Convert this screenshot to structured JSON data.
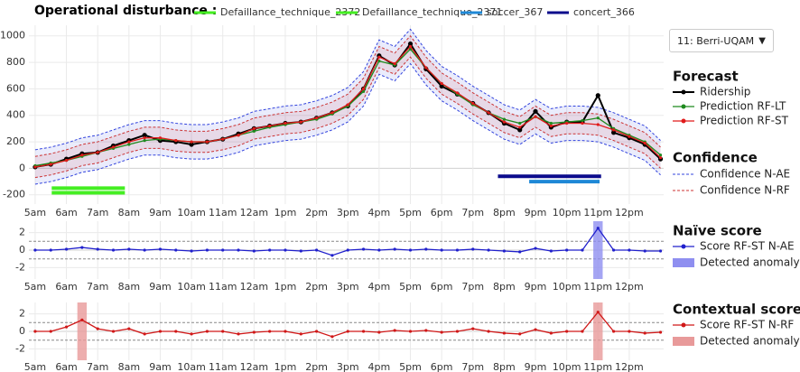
{
  "header": {
    "title": "Operational disturbance :"
  },
  "selector": {
    "label": "11: Berri-UQAM"
  },
  "chart_data": [
    {
      "type": "line",
      "legend_titles": [
        "Forecast",
        "Confidence"
      ],
      "x": [
        5,
        5.5,
        6,
        6.5,
        7,
        7.5,
        8,
        8.5,
        9,
        9.5,
        10,
        10.5,
        11,
        11.5,
        12,
        12.5,
        13,
        13.5,
        14,
        14.5,
        15,
        15.5,
        16,
        16.5,
        17,
        17.5,
        18,
        18.5,
        19,
        19.5,
        20,
        20.5,
        21,
        21.5,
        22,
        22.5,
        23,
        23.5,
        24,
        24.5,
        25
      ],
      "xlim": [
        4.8,
        25.1
      ],
      "xticks": [
        {
          "value": 5,
          "label": "5am"
        },
        {
          "value": 6,
          "label": "6am"
        },
        {
          "value": 7,
          "label": "7am"
        },
        {
          "value": 8,
          "label": "8am"
        },
        {
          "value": 9,
          "label": "9am"
        },
        {
          "value": 10,
          "label": "10am"
        },
        {
          "value": 11,
          "label": "11am"
        },
        {
          "value": 12,
          "label": "12am"
        },
        {
          "value": 13,
          "label": "1pm"
        },
        {
          "value": 14,
          "label": "2pm"
        },
        {
          "value": 15,
          "label": "3pm"
        },
        {
          "value": 16,
          "label": "4pm"
        },
        {
          "value": 17,
          "label": "5pm"
        },
        {
          "value": 18,
          "label": "6pm"
        },
        {
          "value": 19,
          "label": "7pm"
        },
        {
          "value": 20,
          "label": "8pm"
        },
        {
          "value": 21,
          "label": "9pm"
        },
        {
          "value": 22,
          "label": "10pm"
        },
        {
          "value": 23,
          "label": "11pm"
        },
        {
          "value": 24,
          "label": "12pm"
        }
      ],
      "ylim": [
        -270,
        1080
      ],
      "yticks": [
        -200,
        0,
        200,
        400,
        600,
        800,
        1000
      ],
      "grid": true,
      "series": [
        {
          "name": "Ridership",
          "color": "#000000",
          "values": [
            10,
            30,
            70,
            110,
            120,
            170,
            210,
            250,
            210,
            200,
            180,
            200,
            220,
            260,
            300,
            320,
            340,
            350,
            380,
            420,
            470,
            600,
            850,
            780,
            940,
            750,
            620,
            560,
            490,
            420,
            340,
            290,
            430,
            310,
            350,
            350,
            550,
            270,
            230,
            180,
            70
          ]
        },
        {
          "name": "Prediction RF-LT",
          "color": "#1f8a1f",
          "values": [
            20,
            40,
            60,
            90,
            120,
            150,
            180,
            210,
            220,
            210,
            200,
            200,
            220,
            250,
            280,
            310,
            330,
            350,
            370,
            410,
            470,
            580,
            810,
            780,
            900,
            760,
            640,
            560,
            480,
            420,
            370,
            340,
            390,
            340,
            350,
            360,
            380,
            300,
            250,
            200,
            100
          ]
        },
        {
          "name": "Prediction RF-ST",
          "color": "#e01b1b",
          "values": [
            10,
            30,
            60,
            100,
            120,
            160,
            200,
            230,
            230,
            210,
            200,
            200,
            220,
            250,
            300,
            320,
            340,
            350,
            380,
            420,
            480,
            600,
            840,
            790,
            920,
            760,
            640,
            570,
            490,
            420,
            350,
            310,
            390,
            320,
            340,
            340,
            330,
            290,
            240,
            190,
            80
          ]
        }
      ],
      "bands": [
        {
          "name": "Confidence N-AE",
          "color": "#3344dd",
          "upper": [
            140,
            160,
            190,
            230,
            250,
            290,
            330,
            360,
            360,
            340,
            330,
            330,
            350,
            380,
            430,
            450,
            470,
            480,
            510,
            550,
            610,
            730,
            970,
            920,
            1050,
            890,
            770,
            700,
            620,
            550,
            480,
            440,
            520,
            450,
            470,
            470,
            460,
            420,
            370,
            320,
            210
          ],
          "lower": [
            -120,
            -100,
            -70,
            -30,
            -10,
            30,
            70,
            100,
            100,
            80,
            70,
            70,
            90,
            120,
            170,
            190,
            210,
            220,
            250,
            290,
            350,
            470,
            710,
            660,
            790,
            630,
            510,
            440,
            360,
            290,
            220,
            180,
            260,
            190,
            210,
            210,
            200,
            160,
            110,
            60,
            -50
          ]
        },
        {
          "name": "Confidence N-RF",
          "color": "#cc3333",
          "upper": [
            90,
            110,
            140,
            180,
            200,
            240,
            280,
            310,
            310,
            290,
            280,
            280,
            300,
            330,
            380,
            400,
            420,
            430,
            460,
            500,
            560,
            680,
            920,
            870,
            1000,
            840,
            720,
            650,
            570,
            500,
            430,
            390,
            470,
            400,
            420,
            420,
            410,
            370,
            320,
            270,
            160
          ],
          "lower": [
            -70,
            -50,
            -20,
            20,
            40,
            80,
            120,
            150,
            150,
            130,
            120,
            120,
            140,
            170,
            220,
            240,
            260,
            270,
            300,
            340,
            400,
            520,
            760,
            710,
            840,
            680,
            560,
            490,
            410,
            340,
            270,
            230,
            310,
            240,
            260,
            260,
            250,
            210,
            160,
            110,
            0
          ]
        }
      ],
      "disturbances": [
        {
          "name": "Defaillance_technique_2372",
          "color": "#44ee22",
          "start": 5.53,
          "end": 7.87,
          "y": -150
        },
        {
          "name": "Defaillance_technique_2371",
          "color": "#44ee22",
          "start": 5.53,
          "end": 7.87,
          "y": -185
        },
        {
          "name": "soccer_367",
          "color": "#1e88d6",
          "start": 20.8,
          "end": 23.05,
          "y": -100
        },
        {
          "name": "concert_366",
          "color": "#0b0b8c",
          "start": 19.8,
          "end": 23.1,
          "y": -60
        }
      ]
    },
    {
      "type": "line",
      "legend_titles": [
        "Naïve score"
      ],
      "x": [
        5,
        5.5,
        6,
        6.5,
        7,
        7.5,
        8,
        8.5,
        9,
        9.5,
        10,
        10.5,
        11,
        11.5,
        12,
        12.5,
        13,
        13.5,
        14,
        14.5,
        15,
        15.5,
        16,
        16.5,
        17,
        17.5,
        18,
        18.5,
        19,
        19.5,
        20,
        20.5,
        21,
        21.5,
        22,
        22.5,
        23,
        23.5,
        24,
        24.5,
        25
      ],
      "xlim": [
        4.8,
        25.1
      ],
      "xticks": [
        {
          "value": 5,
          "label": "5am"
        },
        {
          "value": 6,
          "label": "6am"
        },
        {
          "value": 7,
          "label": "7am"
        },
        {
          "value": 8,
          "label": "8am"
        },
        {
          "value": 9,
          "label": "9am"
        },
        {
          "value": 10,
          "label": "10am"
        },
        {
          "value": 11,
          "label": "11am"
        },
        {
          "value": 12,
          "label": "12am"
        },
        {
          "value": 13,
          "label": "1pm"
        },
        {
          "value": 14,
          "label": "2pm"
        },
        {
          "value": 15,
          "label": "3pm"
        },
        {
          "value": 16,
          "label": "4pm"
        },
        {
          "value": 17,
          "label": "5pm"
        },
        {
          "value": 18,
          "label": "6pm"
        },
        {
          "value": 19,
          "label": "7pm"
        },
        {
          "value": 20,
          "label": "8pm"
        },
        {
          "value": 21,
          "label": "9pm"
        },
        {
          "value": 22,
          "label": "10pm"
        },
        {
          "value": 23,
          "label": "11pm"
        },
        {
          "value": 24,
          "label": "12pm"
        }
      ],
      "ylim": [
        -3.3,
        3.3
      ],
      "yticks": [
        -2,
        0,
        2
      ],
      "grid": true,
      "thresholds": [
        1,
        -1
      ],
      "series": [
        {
          "name": "Score RF-ST N-AE",
          "color": "#2020cc",
          "values": [
            0,
            0,
            0.1,
            0.3,
            0.1,
            0,
            0.1,
            0,
            0.1,
            0,
            -0.1,
            0,
            0,
            0,
            -0.1,
            0,
            0,
            -0.1,
            0,
            -0.6,
            0,
            0.1,
            0,
            0.1,
            0,
            0.1,
            0,
            0,
            0.1,
            0,
            -0.1,
            -0.2,
            0.2,
            -0.1,
            0,
            0,
            2.5,
            0,
            0,
            -0.1,
            -0.1
          ]
        }
      ],
      "anomalies": {
        "name": "Detected anomaly",
        "color": "#8f8ff0",
        "spans": [
          [
            22.85,
            23.15
          ]
        ]
      }
    },
    {
      "type": "line",
      "legend_titles": [
        "Contextual score"
      ],
      "x": [
        5,
        5.5,
        6,
        6.5,
        7,
        7.5,
        8,
        8.5,
        9,
        9.5,
        10,
        10.5,
        11,
        11.5,
        12,
        12.5,
        13,
        13.5,
        14,
        14.5,
        15,
        15.5,
        16,
        16.5,
        17,
        17.5,
        18,
        18.5,
        19,
        19.5,
        20,
        20.5,
        21,
        21.5,
        22,
        22.5,
        23,
        23.5,
        24,
        24.5,
        25
      ],
      "xlim": [
        4.8,
        25.1
      ],
      "xticks": [
        {
          "value": 5,
          "label": "5am"
        },
        {
          "value": 6,
          "label": "6am"
        },
        {
          "value": 7,
          "label": "7am"
        },
        {
          "value": 8,
          "label": "8am"
        },
        {
          "value": 9,
          "label": "9am"
        },
        {
          "value": 10,
          "label": "10am"
        },
        {
          "value": 11,
          "label": "11am"
        },
        {
          "value": 12,
          "label": "12am"
        },
        {
          "value": 13,
          "label": "1pm"
        },
        {
          "value": 14,
          "label": "2pm"
        },
        {
          "value": 15,
          "label": "3pm"
        },
        {
          "value": 16,
          "label": "4pm"
        },
        {
          "value": 17,
          "label": "5pm"
        },
        {
          "value": 18,
          "label": "6pm"
        },
        {
          "value": 19,
          "label": "7pm"
        },
        {
          "value": 20,
          "label": "8pm"
        },
        {
          "value": 21,
          "label": "9pm"
        },
        {
          "value": 22,
          "label": "10pm"
        },
        {
          "value": 23,
          "label": "11pm"
        },
        {
          "value": 24,
          "label": "12pm"
        }
      ],
      "ylim": [
        -3.3,
        3.3
      ],
      "yticks": [
        -2,
        0,
        2
      ],
      "grid": true,
      "thresholds": [
        1,
        -1
      ],
      "series": [
        {
          "name": "Score RF-ST N-RF",
          "color": "#d01818",
          "values": [
            0,
            0,
            0.5,
            1.3,
            0.3,
            0,
            0.3,
            -0.3,
            0,
            0,
            -0.3,
            0,
            0,
            -0.3,
            -0.1,
            0,
            0,
            -0.3,
            0,
            -0.6,
            0,
            0,
            -0.1,
            0.1,
            0,
            0.1,
            -0.1,
            0,
            0.3,
            0,
            -0.2,
            -0.3,
            0.2,
            -0.2,
            0,
            0,
            2.2,
            0,
            0,
            -0.2,
            -0.1
          ]
        }
      ],
      "anomalies": {
        "name": "Detected anomaly",
        "color": "#e89a9a",
        "spans": [
          [
            6.35,
            6.65
          ],
          [
            22.85,
            23.15
          ]
        ]
      }
    }
  ]
}
